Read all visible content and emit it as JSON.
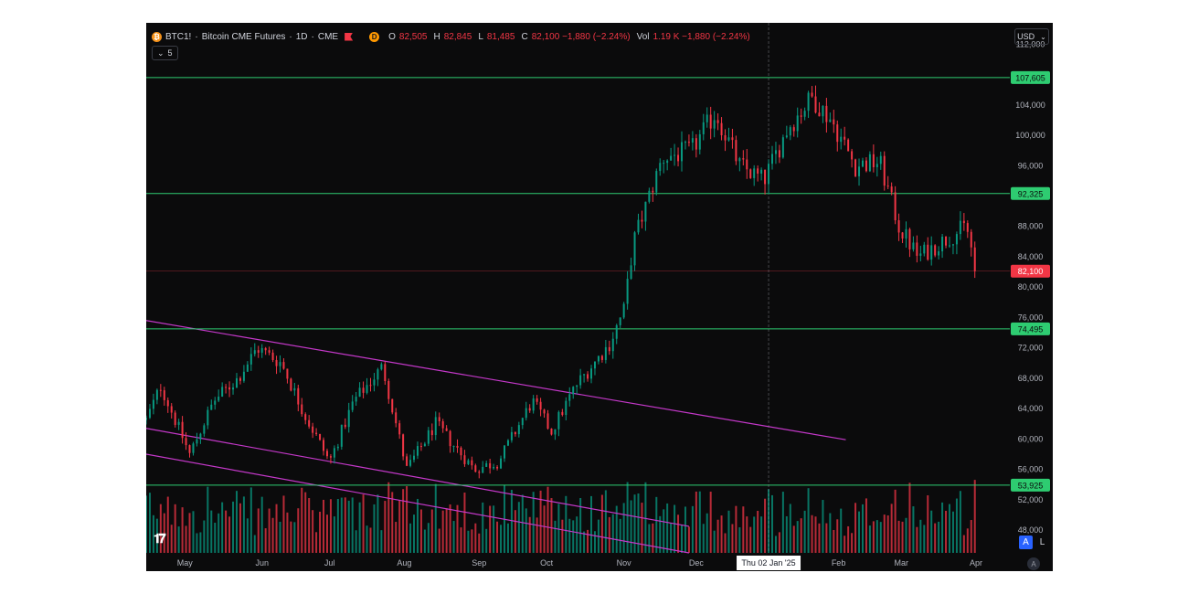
{
  "header": {
    "symbol": "BTC1!",
    "sep1": "·",
    "name": "Bitcoin CME Futures",
    "sep2": "·",
    "interval": "1D",
    "sep3": "·",
    "exchange": "CME",
    "coin_icon": "bitcoin-icon",
    "d_badge": "D",
    "ohlc": {
      "o_label": "O",
      "o_value": "82,505",
      "h_label": "H",
      "h_value": "82,845",
      "l_label": "L",
      "l_value": "81,485",
      "c_label": "C",
      "c_value": "82,100 −1,880 (−2.24%)",
      "vol_label": "Vol",
      "vol_value": "1.19 K −1,880 (−2.24%)"
    }
  },
  "indicator_toggle": {
    "count": "5"
  },
  "currency": {
    "label": "USD"
  },
  "controls": {
    "auto_label": "A",
    "log_label": "L",
    "auto_scale": "A"
  },
  "colors": {
    "up": "#089981",
    "down": "#f23645",
    "level": "#2ecc71",
    "channel": "#c438c9",
    "background": "#0b0b0c"
  },
  "chart_data": {
    "type": "candlestick",
    "y_range": [
      45000,
      113000
    ],
    "y_ticks": [
      48000,
      52000,
      56000,
      60000,
      64000,
      68000,
      72000,
      76000,
      80000,
      84000,
      88000,
      96000,
      100000,
      104000,
      112000
    ],
    "y_tick_labels": [
      "48,000",
      "52,000",
      "56,000",
      "60,000",
      "64,000",
      "68,000",
      "72,000",
      "76,000",
      "80,000",
      "84,000",
      "88,000",
      "96,000",
      "100,000",
      "104,000",
      "112,000"
    ],
    "x_labels": [
      "May",
      "Jun",
      "Jul",
      "Aug",
      "Sep",
      "Oct",
      "Nov",
      "Dec",
      "Feb",
      "Mar",
      "Apr"
    ],
    "x_label_days": [
      6,
      38,
      66,
      97,
      128,
      156,
      188,
      218,
      277,
      303,
      334
    ],
    "day_range": [
      -10,
      348
    ],
    "crosshair": {
      "day": 248,
      "label": "Thu 02 Jan '25"
    },
    "horizontal_levels": [
      {
        "value": 107605,
        "label": "107,605"
      },
      {
        "value": 92325,
        "label": "92,325"
      },
      {
        "value": 74495,
        "label": "74,495"
      },
      {
        "value": 53925,
        "label": "53,925"
      }
    ],
    "last_price": {
      "value": 82100,
      "label": "82,100"
    },
    "channel_lines": [
      {
        "from": [
          -10,
          75600
        ],
        "to": [
          280,
          59900
        ]
      },
      {
        "from": [
          -10,
          61400
        ],
        "to": [
          215,
          48500
        ]
      },
      {
        "from": [
          -10,
          58000
        ],
        "to": [
          215,
          45000
        ]
      }
    ],
    "anchors": [
      [
        -10,
        62500
      ],
      [
        -4,
        67000
      ],
      [
        8,
        58000
      ],
      [
        18,
        65000
      ],
      [
        28,
        68000
      ],
      [
        36,
        72000
      ],
      [
        46,
        70000
      ],
      [
        56,
        63000
      ],
      [
        66,
        57000
      ],
      [
        76,
        65000
      ],
      [
        88,
        69500
      ],
      [
        98,
        56000
      ],
      [
        110,
        62000
      ],
      [
        126,
        56000
      ],
      [
        136,
        57000
      ],
      [
        150,
        65000
      ],
      [
        158,
        61000
      ],
      [
        168,
        67000
      ],
      [
        182,
        72500
      ],
      [
        188,
        77000
      ],
      [
        192,
        86000
      ],
      [
        204,
        97000
      ],
      [
        216,
        98000
      ],
      [
        226,
        103000
      ],
      [
        236,
        96000
      ],
      [
        246,
        94000
      ],
      [
        256,
        101000
      ],
      [
        266,
        105000
      ],
      [
        274,
        102000
      ],
      [
        284,
        96000
      ],
      [
        294,
        96500
      ],
      [
        302,
        88000
      ],
      [
        310,
        84000
      ],
      [
        320,
        86000
      ],
      [
        330,
        88000
      ],
      [
        334,
        82100
      ]
    ]
  }
}
